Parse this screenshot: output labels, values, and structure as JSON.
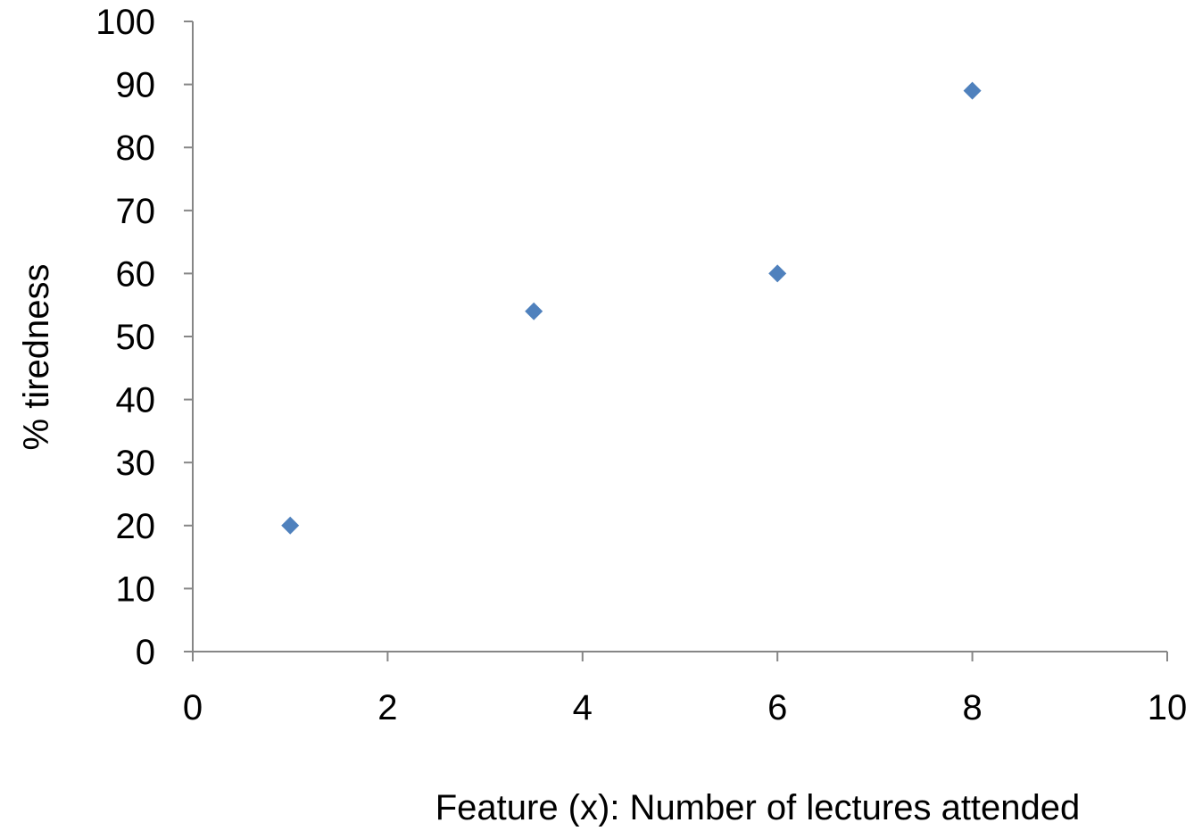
{
  "chart_data": {
    "type": "scatter",
    "title": "",
    "xlabel": "Feature (x): Number of lectures attended",
    "ylabel": "% tiredness",
    "xlim": [
      0,
      10
    ],
    "ylim": [
      0,
      100
    ],
    "x_ticks": [
      "0",
      "2",
      "4",
      "6",
      "8",
      "10"
    ],
    "y_ticks": [
      "0",
      "10",
      "20",
      "30",
      "40",
      "50",
      "60",
      "70",
      "80",
      "90",
      "100"
    ],
    "grid": false,
    "legend": "none",
    "marker": "diamond",
    "marker_color": "#4F81BD",
    "series": [
      {
        "points": [
          {
            "x": 1,
            "y": 20
          },
          {
            "x": 3.5,
            "y": 54
          },
          {
            "x": 6,
            "y": 60
          },
          {
            "x": 8,
            "y": 89
          }
        ]
      }
    ]
  }
}
